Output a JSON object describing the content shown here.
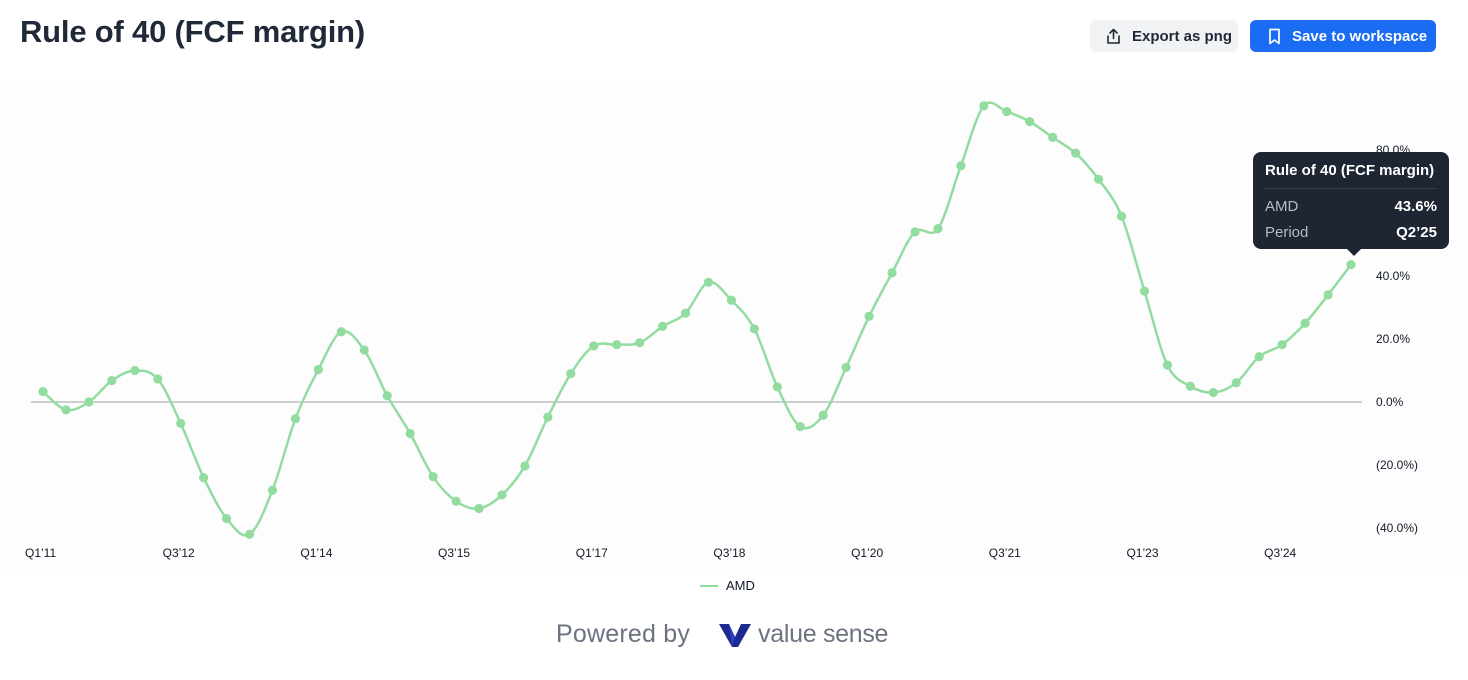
{
  "header": {
    "title": "Rule of 40 (FCF margin)",
    "export_label": "Export as png",
    "save_label": "Save to workspace"
  },
  "tooltip": {
    "title": "Rule of 40 (FCF margin)",
    "series_label": "AMD",
    "series_value": "43.6%",
    "period_label": "Period",
    "period_value": "Q2’25"
  },
  "legend": {
    "label": "AMD"
  },
  "footer": {
    "powered_by": "Powered by",
    "brand": "value sense"
  },
  "colors": {
    "series": "#93dca0",
    "accent": "#1a6cf2",
    "tooltip_bg": "#1e2533",
    "brand_logo": "#1f2a8f"
  },
  "chart_data": {
    "type": "line",
    "title": "Rule of 40 (FCF margin)",
    "xlabel": "",
    "ylabel": "",
    "ylim": [
      -42,
      95
    ],
    "y_ticks": [
      80,
      40,
      20,
      0,
      -20,
      -40
    ],
    "y_tick_labels": [
      "80.0%",
      "40.0%",
      "20.0%",
      "0.0%",
      "(20.0%)",
      "(40.0%)"
    ],
    "x_tick_labels": [
      "Q1’11",
      "Q3’12",
      "Q1’14",
      "Q3’15",
      "Q1’17",
      "Q3’18",
      "Q1’20",
      "Q3’21",
      "Q1’23",
      "Q3’24"
    ],
    "x_tick_indices": [
      0,
      6,
      12,
      18,
      24,
      30,
      36,
      42,
      48,
      54
    ],
    "legend_position": "bottom-center",
    "grid": false,
    "series": [
      {
        "name": "AMD",
        "color": "#93dca0",
        "periods": [
          "Q1’11",
          "Q2’11",
          "Q3’11",
          "Q4’11",
          "Q1’12",
          "Q2’12",
          "Q3’12",
          "Q4’12",
          "Q1’13",
          "Q2’13",
          "Q3’13",
          "Q4’13",
          "Q1’14",
          "Q2’14",
          "Q3’14",
          "Q4’14",
          "Q1’15",
          "Q2’15",
          "Q3’15",
          "Q4’15",
          "Q1’16",
          "Q2’16",
          "Q3’16",
          "Q4’16",
          "Q1’17",
          "Q2’17",
          "Q3’17",
          "Q4’17",
          "Q1’18",
          "Q2’18",
          "Q3’18",
          "Q4’18",
          "Q1’19",
          "Q2’19",
          "Q3’19",
          "Q4’19",
          "Q1’20",
          "Q2’20",
          "Q3’20",
          "Q4’20",
          "Q1’21",
          "Q2’21",
          "Q3’21",
          "Q4’21",
          "Q1’22",
          "Q2’22",
          "Q3’22",
          "Q4’22",
          "Q1’23",
          "Q2’23",
          "Q3’23",
          "Q4’23",
          "Q1’24",
          "Q2’24",
          "Q3’24",
          "Q4’24",
          "Q1’25",
          "Q2’25"
        ],
        "values": [
          3.3,
          -2.5,
          0,
          6.8,
          10,
          7.3,
          -6.8,
          -24,
          -37,
          -42,
          -28,
          -5.3,
          10.3,
          22.3,
          16.5,
          2,
          -10,
          -23.7,
          -31.5,
          -33.8,
          -29.5,
          -20.3,
          -4.8,
          9,
          17.8,
          18.2,
          18.8,
          24,
          28.2,
          38,
          32.3,
          23.2,
          4.8,
          -7.8,
          -4.2,
          11,
          27.2,
          41,
          54,
          55,
          75,
          94,
          92.2,
          89,
          84,
          79,
          70.7,
          59,
          35.2,
          11.7,
          5,
          3,
          6.1,
          14.4,
          18.2,
          25,
          34,
          43.6
        ]
      }
    ]
  }
}
